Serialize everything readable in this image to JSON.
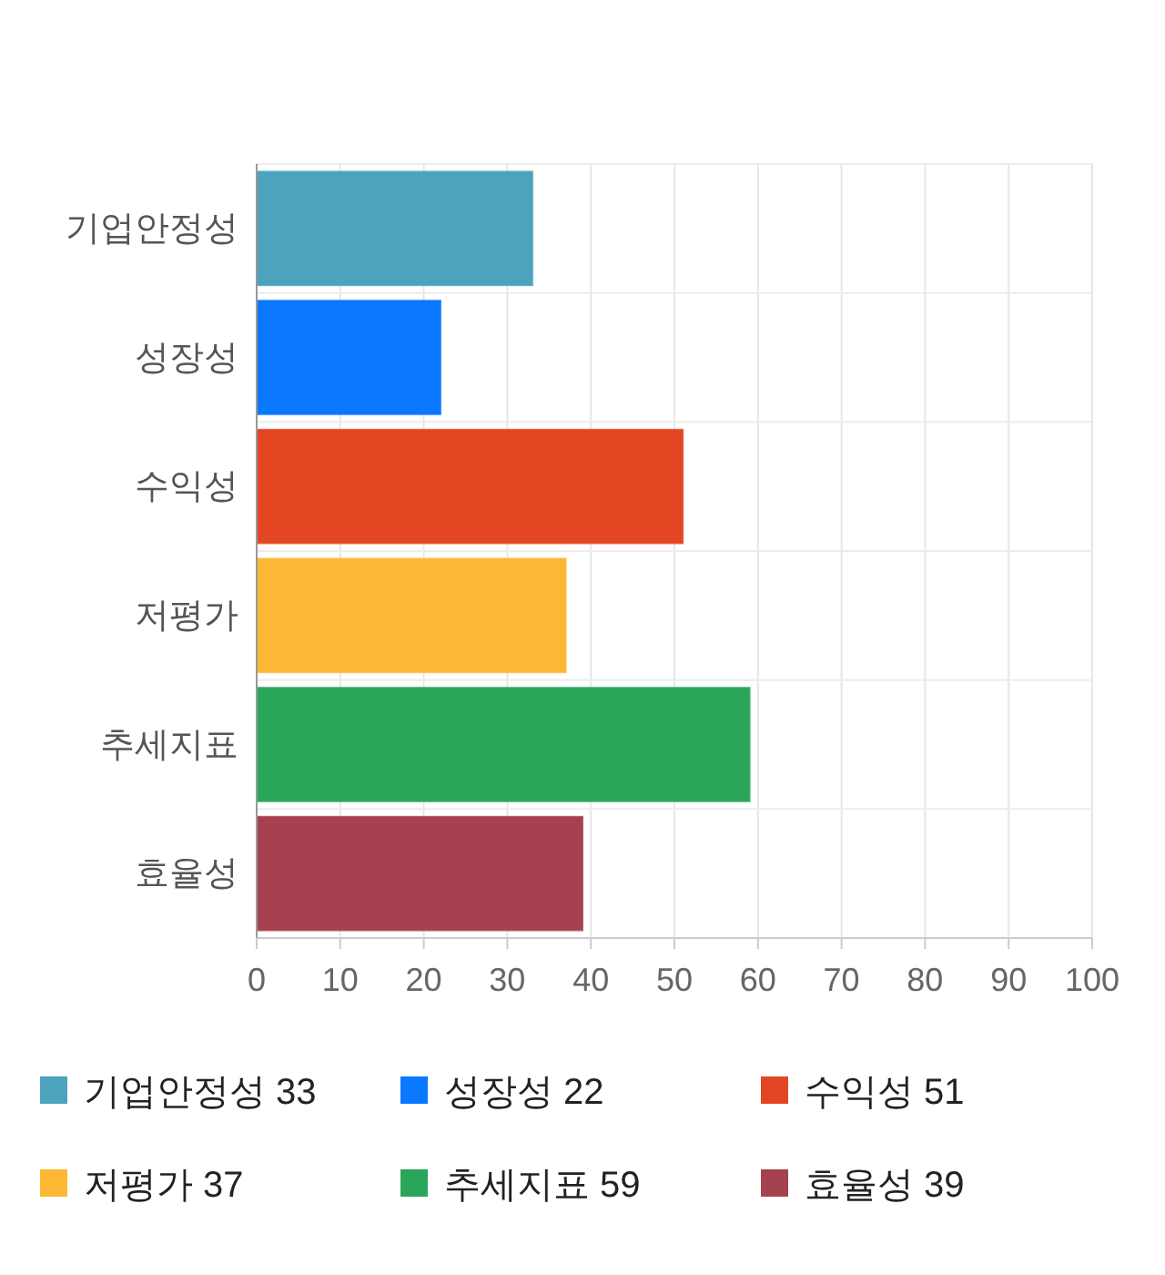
{
  "chart_data": {
    "type": "bar",
    "orientation": "horizontal",
    "categories": [
      "기업안정성",
      "성장성",
      "수익성",
      "저평가",
      "추세지표",
      "효율성"
    ],
    "values": [
      33,
      22,
      51,
      37,
      59,
      39
    ],
    "colors": [
      "#4ba3bd",
      "#0a78ff",
      "#e34623",
      "#fdb734",
      "#29a65a",
      "#a6414f"
    ],
    "value_labels": [
      "33",
      "22",
      "51",
      "37",
      "59",
      "39"
    ],
    "xlim": [
      0,
      100
    ],
    "xticks": [
      0,
      10,
      20,
      30,
      40,
      50,
      60,
      70,
      80,
      90,
      100
    ],
    "grid": true
  }
}
